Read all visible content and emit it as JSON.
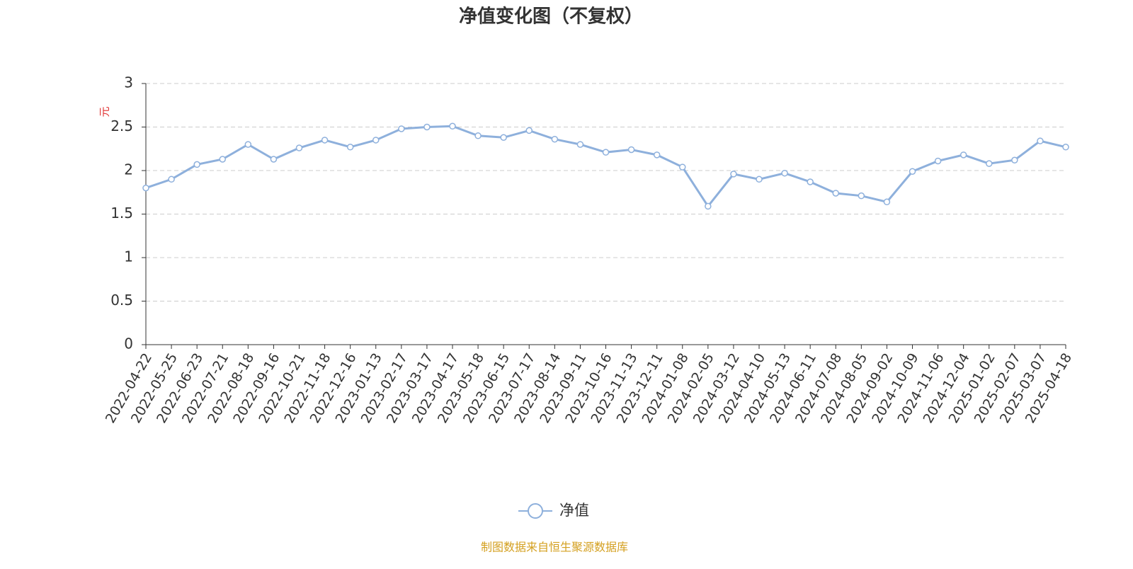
{
  "chart_data": {
    "type": "line",
    "title": "净值变化图（不复权）",
    "y_label": "元",
    "source": "制图数据来自恒生聚源数据库",
    "categories": [
      "2022-04-22",
      "2022-05-25",
      "2022-06-23",
      "2022-07-21",
      "2022-08-18",
      "2022-09-16",
      "2022-10-21",
      "2022-11-18",
      "2022-12-16",
      "2023-01-13",
      "2023-02-17",
      "2023-03-17",
      "2023-04-17",
      "2023-05-18",
      "2023-06-15",
      "2023-07-17",
      "2023-08-14",
      "2023-09-11",
      "2023-10-16",
      "2023-11-13",
      "2023-12-11",
      "2024-01-08",
      "2024-02-05",
      "2024-03-12",
      "2024-04-10",
      "2024-05-13",
      "2024-06-11",
      "2024-07-08",
      "2024-08-05",
      "2024-09-02",
      "2024-10-09",
      "2024-11-06",
      "2024-12-04",
      "2025-01-02",
      "2025-02-07",
      "2025-03-07",
      "2025-04-18"
    ],
    "series": [
      {
        "name": "净值",
        "color": "#8eb0dc",
        "values": [
          1.8,
          1.9,
          2.07,
          2.13,
          2.3,
          2.13,
          2.26,
          2.35,
          2.27,
          2.35,
          2.48,
          2.5,
          2.51,
          2.4,
          2.38,
          2.46,
          2.36,
          2.3,
          2.21,
          2.24,
          2.18,
          2.04,
          1.59,
          1.96,
          1.9,
          1.97,
          1.87,
          1.74,
          1.71,
          1.64,
          1.99,
          2.11,
          2.18,
          2.08,
          2.12,
          2.34,
          2.27
        ]
      }
    ],
    "ylim": [
      0,
      3
    ],
    "yticks": [
      0,
      0.5,
      1,
      1.5,
      2,
      2.5,
      3
    ],
    "grid": true
  }
}
